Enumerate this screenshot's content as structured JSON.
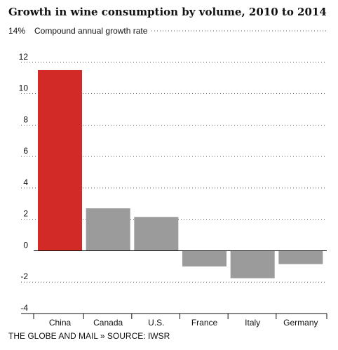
{
  "title": "Growth in wine consumption by volume, 2010 to 2014",
  "source": "THE GLOBE AND MAIL » SOURCE: IWSR",
  "colors": {
    "highlight": "#d22a26",
    "default": "#9b9b9b",
    "grid": "#555555"
  },
  "chart_data": {
    "type": "bar",
    "title": "Growth in wine consumption by volume, 2010 to 2014",
    "ylabel": "Compound annual growth rate",
    "y_top_label": "14%",
    "categories": [
      "China",
      "Canada",
      "U.S.",
      "France",
      "Italy",
      "Germany"
    ],
    "values": [
      11.5,
      2.7,
      2.15,
      -1.0,
      -1.75,
      -0.85
    ],
    "highlight": [
      "China"
    ],
    "yticks": [
      -4,
      -2,
      0,
      2,
      4,
      6,
      8,
      10,
      12
    ],
    "ylim": [
      -4,
      14
    ],
    "grid": "horizontal dotted"
  }
}
